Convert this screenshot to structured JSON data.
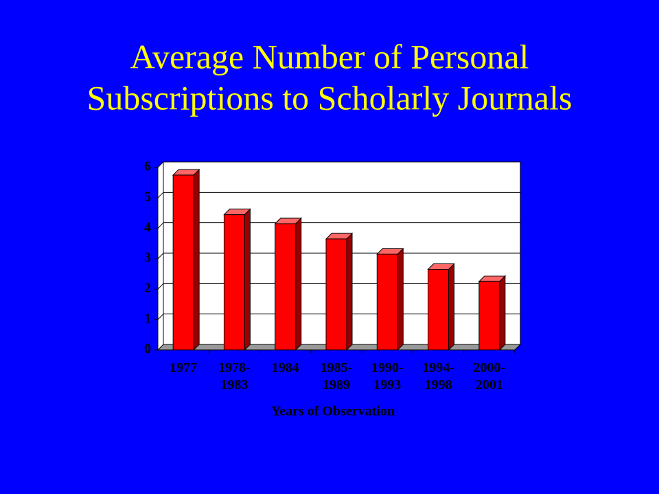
{
  "chart_data": {
    "type": "bar3d",
    "title": "Average Number of Personal",
    "title_line2": "Subscriptions to Scholarly Journals",
    "x_label": "Years of Observation",
    "categories": [
      "1977",
      "1978-\n1983",
      "1984",
      "1985-\n1989",
      "1990-\n1993",
      "1994-\n1998",
      "2000-\n2001"
    ],
    "values": [
      5.75,
      4.45,
      4.15,
      3.65,
      3.15,
      2.65,
      2.25
    ],
    "color": "#ff0000",
    "ylim": [
      0,
      6
    ],
    "yticks": [
      0,
      1,
      2,
      3,
      4,
      5,
      6
    ],
    "grid": true
  }
}
